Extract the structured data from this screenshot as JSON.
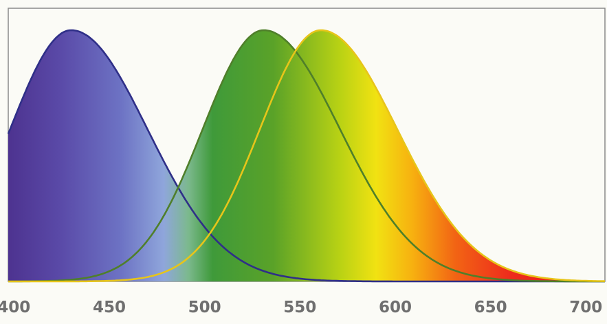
{
  "chart_data": {
    "type": "area",
    "title": "",
    "xlabel": "",
    "ylabel": "",
    "xlim": [
      397,
      710
    ],
    "ylim": [
      0,
      1
    ],
    "x_ticks": [
      400,
      450,
      500,
      550,
      600,
      650,
      700
    ],
    "x_tick_labels": [
      "400",
      "450",
      "500",
      "550",
      "600",
      "650",
      "700"
    ],
    "grid": false,
    "legend": "none",
    "series": [
      {
        "peak_nm": 430,
        "peak_value": 1.0,
        "line_color": "#2f2f88",
        "fill": "spectrum"
      },
      {
        "peak_nm": 531,
        "peak_value": 1.0,
        "line_color": "#4f7f2a",
        "fill": "spectrum"
      },
      {
        "peak_nm": 561,
        "peak_value": 1.0,
        "line_color": "#e7c51a",
        "fill": "spectrum"
      }
    ]
  }
}
